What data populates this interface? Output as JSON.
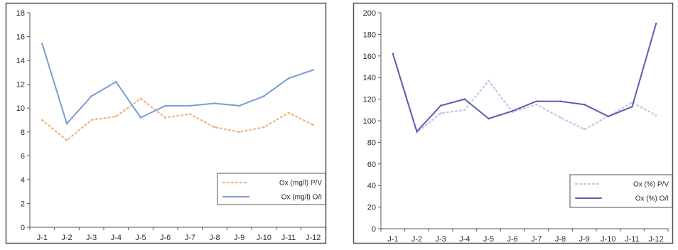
{
  "chart_data": [
    {
      "type": "line",
      "categories": [
        "J-1",
        "J-2",
        "J-3",
        "J-4",
        "J-5",
        "J-6",
        "J-7",
        "J-8",
        "J-9",
        "J-10",
        "J-11",
        "J-12"
      ],
      "ylim": [
        0,
        18
      ],
      "yticks": [
        0,
        2,
        4,
        6,
        8,
        10,
        12,
        14,
        16,
        18
      ],
      "grid": false,
      "legend_position": "bottom-right",
      "series": [
        {
          "name": "Ox (mg/l) P/V",
          "style": "dotted",
          "color": "#f0b27a",
          "values": [
            9.0,
            7.3,
            9.0,
            9.3,
            10.8,
            9.2,
            9.5,
            8.4,
            8.0,
            8.4,
            9.6,
            8.6
          ]
        },
        {
          "name": "Ox (mg/l) O/I",
          "style": "solid",
          "color": "#7a9bd6",
          "values": [
            15.4,
            8.7,
            11.0,
            12.2,
            9.2,
            10.2,
            10.2,
            10.4,
            10.2,
            11.0,
            12.5,
            13.2
          ]
        }
      ]
    },
    {
      "type": "line",
      "categories": [
        "J-1",
        "J-2",
        "J-3",
        "J-4",
        "J-5",
        "J-6",
        "J-7",
        "J-8",
        "J-9",
        "J-10",
        "J-11",
        "J-12"
      ],
      "ylim": [
        0,
        200
      ],
      "yticks": [
        0,
        20,
        40,
        60,
        80,
        100,
        120,
        140,
        160,
        180,
        200
      ],
      "grid": false,
      "legend_position": "bottom-right",
      "series": [
        {
          "name": "Ox (%) P/V",
          "style": "dotted",
          "color": "#c3c6e6",
          "values": [
            162,
            89,
            107,
            110,
            137,
            108,
            115,
            103,
            92,
            104,
            117,
            105
          ]
        },
        {
          "name": "Ox (%) O/I",
          "style": "solid",
          "color": "#5a5fb0",
          "values": [
            162,
            90,
            114,
            120,
            102,
            109,
            118,
            118,
            115,
            104,
            113,
            190
          ]
        }
      ]
    }
  ]
}
